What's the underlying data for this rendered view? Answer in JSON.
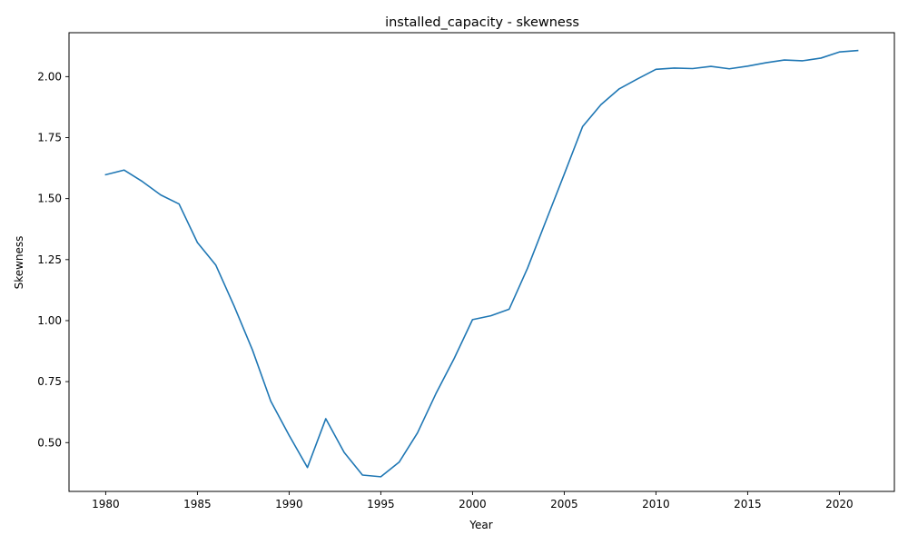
{
  "chart_data": {
    "type": "line",
    "title": "installed_capacity - skewness",
    "xlabel": "Year",
    "ylabel": "Skewness",
    "xlim": [
      1978,
      2023
    ],
    "ylim": [
      0.3,
      2.18
    ],
    "xticks": [
      1980,
      1985,
      1990,
      1995,
      2000,
      2005,
      2010,
      2015,
      2020
    ],
    "yticks": [
      0.5,
      0.75,
      1.0,
      1.25,
      1.5,
      1.75,
      2.0
    ],
    "ytick_labels": [
      "0.50",
      "0.75",
      "1.00",
      "1.25",
      "1.50",
      "1.75",
      "2.00"
    ],
    "grid": false,
    "color": "#1f77b4",
    "series": [
      {
        "x": [
          1980,
          1981,
          1982,
          1983,
          1984,
          1985,
          1986,
          1987,
          1988,
          1989,
          1990,
          1991,
          1992,
          1993,
          1994,
          1995,
          1996,
          1997,
          1998,
          1999,
          2000,
          2001,
          2002,
          2003,
          2004,
          2005,
          2006,
          2007,
          2008,
          2009,
          2010,
          2011,
          2012,
          2013,
          2014,
          2015,
          2016,
          2017,
          2018,
          2019,
          2020,
          2021
        ],
        "values": [
          1.598,
          1.617,
          1.57,
          1.515,
          1.478,
          1.32,
          1.228,
          1.06,
          0.88,
          0.67,
          0.53,
          0.398,
          0.598,
          0.46,
          0.367,
          0.36,
          0.42,
          0.54,
          0.7,
          0.845,
          1.004,
          1.02,
          1.047,
          1.215,
          1.408,
          1.6,
          1.795,
          1.885,
          1.95,
          1.991,
          2.03,
          2.035,
          2.033,
          2.042,
          2.032,
          2.043,
          2.057,
          2.068,
          2.065,
          2.076,
          2.101,
          2.107
        ]
      }
    ]
  }
}
